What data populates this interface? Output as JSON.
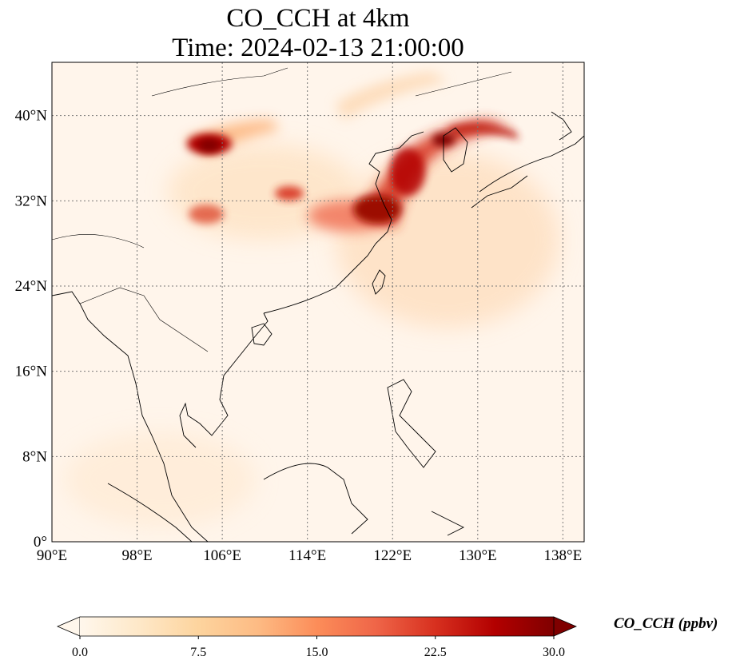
{
  "title": {
    "line1": "CO_CCH at 4km",
    "line2": "Time: 2024-02-13 21:00:00"
  },
  "map": {
    "variable": "CO_CCH",
    "extent": {
      "lon": [
        90,
        140
      ],
      "lat": [
        0,
        45
      ]
    },
    "x_ticks": [
      {
        "value": 90,
        "label": "90°E"
      },
      {
        "value": 98,
        "label": "98°E"
      },
      {
        "value": 106,
        "label": "106°E"
      },
      {
        "value": 114,
        "label": "114°E"
      },
      {
        "value": 122,
        "label": "122°E"
      },
      {
        "value": 130,
        "label": "130°E"
      },
      {
        "value": 138,
        "label": "138°E"
      }
    ],
    "y_ticks": [
      {
        "value": 0,
        "label": "0°"
      },
      {
        "value": 8,
        "label": "8°N"
      },
      {
        "value": 16,
        "label": "16°N"
      },
      {
        "value": 24,
        "label": "24°N"
      },
      {
        "value": 32,
        "label": "32°N"
      },
      {
        "value": 40,
        "label": "40°N"
      }
    ],
    "gridlines": true,
    "background_color": "#fff5eb"
  },
  "colorbar": {
    "label": "CO_CCH (ppbv)",
    "colormap": "OrRd",
    "range": [
      0,
      30
    ],
    "extend": "both",
    "ticks": [
      {
        "value": 0,
        "label": "0.0"
      },
      {
        "value": 7.5,
        "label": "7.5"
      },
      {
        "value": 15,
        "label": "15.0"
      },
      {
        "value": 22.5,
        "label": "22.5"
      },
      {
        "value": 30,
        "label": "30.0"
      }
    ],
    "colors": [
      "#fff7ec",
      "#fee8c8",
      "#fdd49e",
      "#fdbb84",
      "#fc8d59",
      "#ef6548",
      "#d7301f",
      "#b30000",
      "#7f0000"
    ]
  }
}
